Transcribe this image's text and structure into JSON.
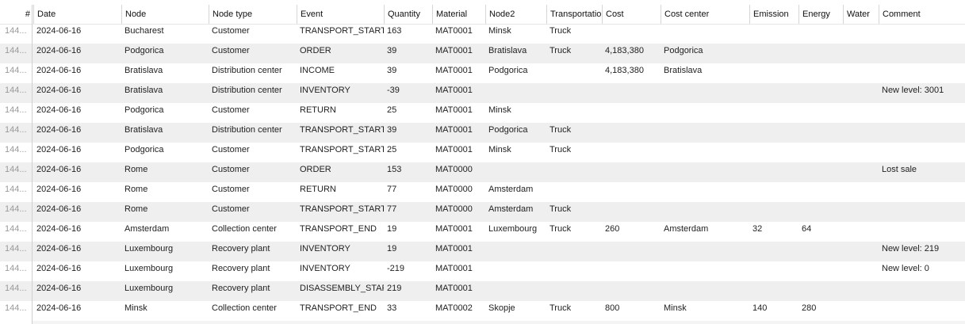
{
  "columns": [
    "#",
    "Date",
    "Node",
    "Node type",
    "Event",
    "Quantity",
    "Material",
    "Node2",
    "Transportation",
    "Cost",
    "Cost center",
    "Emission",
    "Energy",
    "Water",
    "Comment"
  ],
  "rows": [
    [
      "144...",
      "2024-06-16",
      "Bucharest",
      "Customer",
      "TRANSPORT_START",
      "163",
      "MAT0001",
      "Minsk",
      "Truck",
      "",
      "",
      "",
      "",
      "",
      ""
    ],
    [
      "144...",
      "2024-06-16",
      "Podgorica",
      "Customer",
      "ORDER",
      "39",
      "MAT0001",
      "Bratislava",
      "Truck",
      "4,183,380",
      "Podgorica",
      "",
      "",
      "",
      ""
    ],
    [
      "144...",
      "2024-06-16",
      "Bratislava",
      "Distribution center",
      "INCOME",
      "39",
      "MAT0001",
      "Podgorica",
      "",
      "4,183,380",
      "Bratislava",
      "",
      "",
      "",
      ""
    ],
    [
      "144...",
      "2024-06-16",
      "Bratislava",
      "Distribution center",
      "INVENTORY",
      "-39",
      "MAT0001",
      "",
      "",
      "",
      "",
      "",
      "",
      "",
      "New level: 3001"
    ],
    [
      "144...",
      "2024-06-16",
      "Podgorica",
      "Customer",
      "RETURN",
      "25",
      "MAT0001",
      "Minsk",
      "",
      "",
      "",
      "",
      "",
      "",
      ""
    ],
    [
      "144...",
      "2024-06-16",
      "Bratislava",
      "Distribution center",
      "TRANSPORT_START",
      "39",
      "MAT0001",
      "Podgorica",
      "Truck",
      "",
      "",
      "",
      "",
      "",
      ""
    ],
    [
      "144...",
      "2024-06-16",
      "Podgorica",
      "Customer",
      "TRANSPORT_START",
      "25",
      "MAT0001",
      "Minsk",
      "Truck",
      "",
      "",
      "",
      "",
      "",
      ""
    ],
    [
      "144...",
      "2024-06-16",
      "Rome",
      "Customer",
      "ORDER",
      "153",
      "MAT0000",
      "",
      "",
      "",
      "",
      "",
      "",
      "",
      "Lost sale"
    ],
    [
      "144...",
      "2024-06-16",
      "Rome",
      "Customer",
      "RETURN",
      "77",
      "MAT0000",
      "Amsterdam",
      "",
      "",
      "",
      "",
      "",
      "",
      ""
    ],
    [
      "144...",
      "2024-06-16",
      "Rome",
      "Customer",
      "TRANSPORT_START",
      "77",
      "MAT0000",
      "Amsterdam",
      "Truck",
      "",
      "",
      "",
      "",
      "",
      ""
    ],
    [
      "144...",
      "2024-06-16",
      "Amsterdam",
      "Collection center",
      "TRANSPORT_END",
      "19",
      "MAT0001",
      "Luxembourg",
      "Truck",
      "260",
      "Amsterdam",
      "32",
      "64",
      "",
      ""
    ],
    [
      "144...",
      "2024-06-16",
      "Luxembourg",
      "Recovery plant",
      "INVENTORY",
      "19",
      "MAT0001",
      "",
      "",
      "",
      "",
      "",
      "",
      "",
      "New level: 219"
    ],
    [
      "144...",
      "2024-06-16",
      "Luxembourg",
      "Recovery plant",
      "INVENTORY",
      "-219",
      "MAT0001",
      "",
      "",
      "",
      "",
      "",
      "",
      "",
      "New level: 0"
    ],
    [
      "144...",
      "2024-06-16",
      "Luxembourg",
      "Recovery plant",
      "DISASSEMBLY_START",
      "219",
      "MAT0001",
      "",
      "",
      "",
      "",
      "",
      "",
      "",
      ""
    ],
    [
      "144...",
      "2024-06-16",
      "Minsk",
      "Collection center",
      "TRANSPORT_END",
      "33",
      "MAT0002",
      "Skopje",
      "Truck",
      "800",
      "Minsk",
      "140",
      "280",
      "",
      ""
    ]
  ]
}
